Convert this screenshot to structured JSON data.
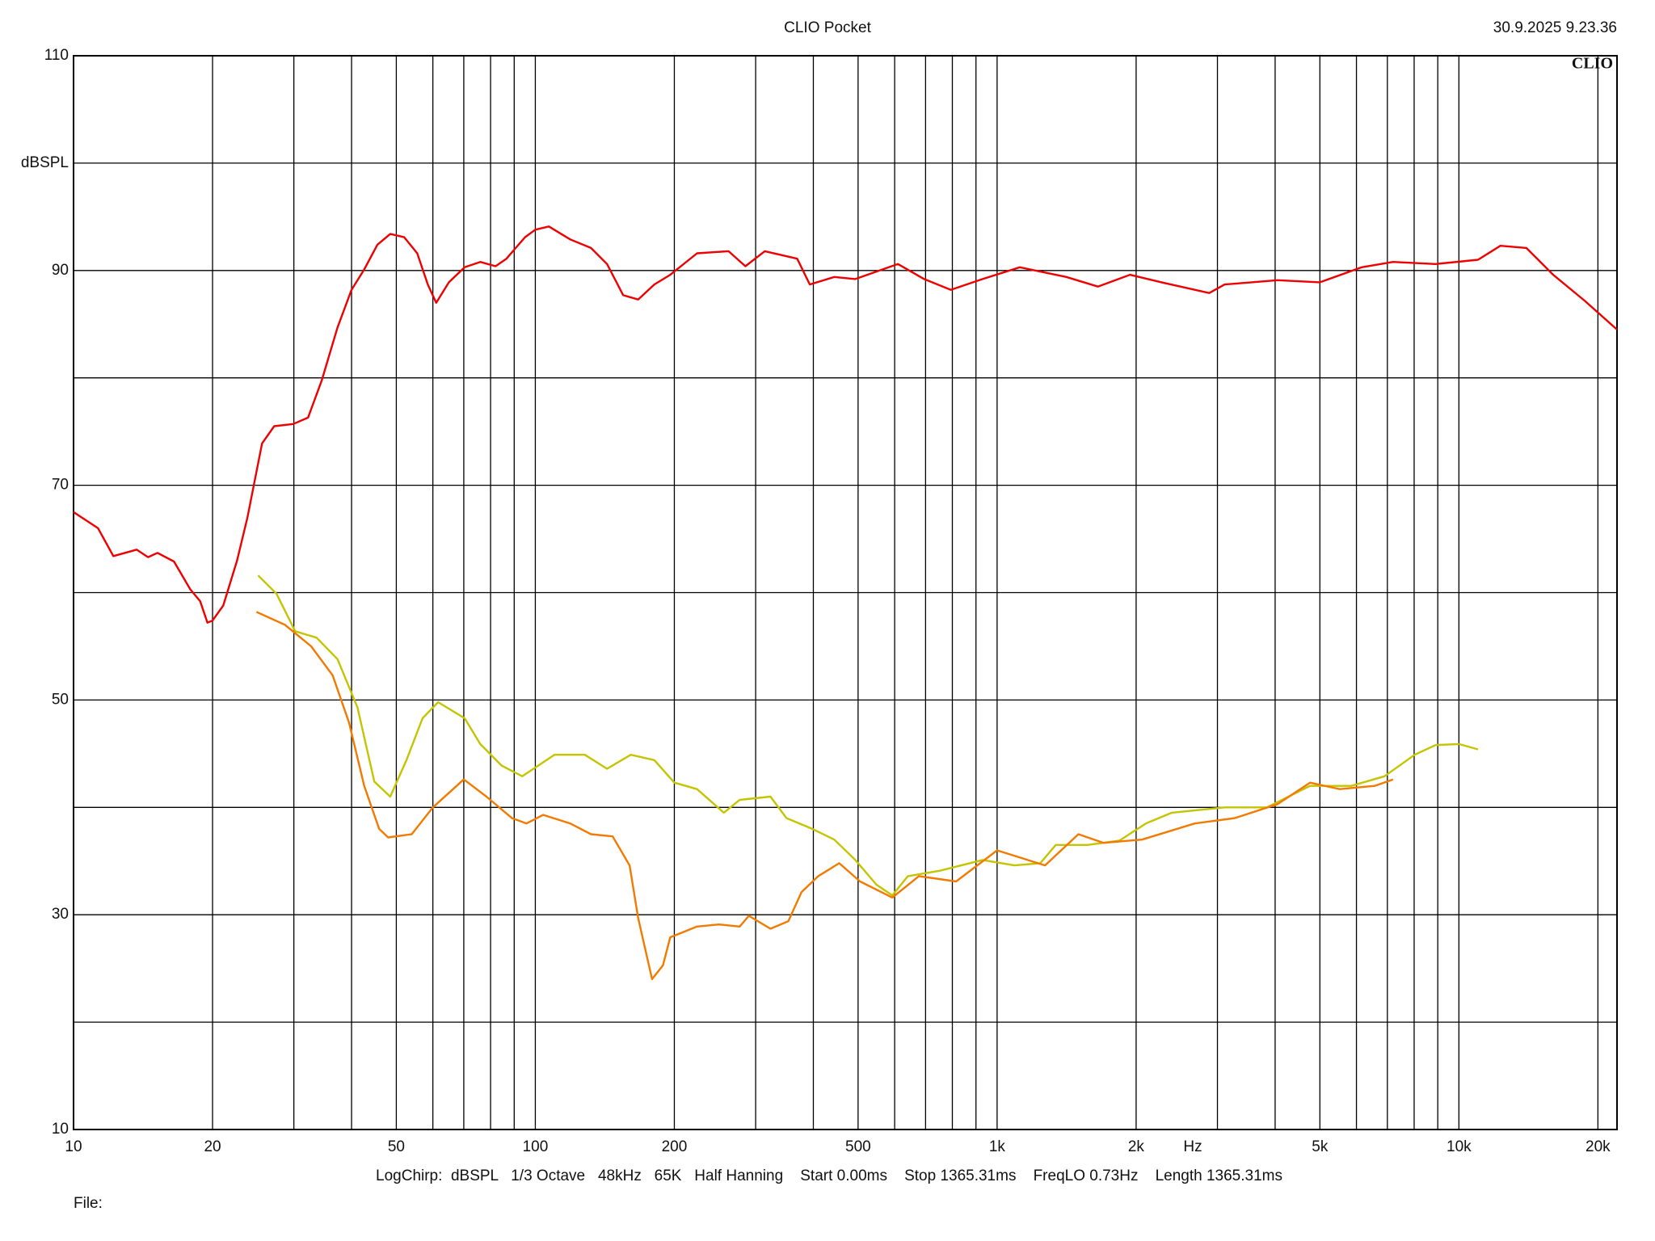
{
  "header": {
    "title": "CLIO Pocket",
    "timestamp": "30.9.2025 9.23.36",
    "logo": "CLIO"
  },
  "footer": {
    "settings": "LogChirp:  dBSPL   1/3 Octave   48kHz   65K   Half Hanning    Start 0.00ms    Stop 1365.31ms    FreqLO 0.73Hz    Length 1365.31ms",
    "file": "File:"
  },
  "chart_data": {
    "type": "line",
    "x_scale": "log",
    "grid": true,
    "xlabel": "Hz",
    "ylabel": "dBSPL",
    "xlim": [
      10,
      22000
    ],
    "ylim": [
      10,
      110
    ],
    "xticks": [
      10,
      20,
      50,
      100,
      200,
      500,
      {
        "value": 1000,
        "label": "1k"
      },
      {
        "value": 2000,
        "label": "2k"
      },
      {
        "value": 5000,
        "label": "5k"
      },
      {
        "value": 10000,
        "label": "10k"
      },
      {
        "value": 20000,
        "label": "20k"
      }
    ],
    "xgrid": [
      30,
      40,
      60,
      70,
      80,
      90,
      300,
      400,
      600,
      700,
      800,
      900,
      3000,
      4000,
      6000,
      7000,
      8000,
      9000
    ],
    "yticks": [
      10,
      30,
      50,
      70,
      90,
      110
    ],
    "ygrid": [
      20,
      40,
      60,
      80,
      100
    ],
    "series": [
      {
        "color": "#ee0000",
        "x": [
          10,
          11.3,
          12.2,
          13.7,
          14.5,
          15.2,
          16.5,
          17.9,
          18.8,
          19.5,
          20,
          21.1,
          22.6,
          23.8,
          25.6,
          27.2,
          29.9,
          32.2,
          34.5,
          37.3,
          40,
          42.6,
          45.5,
          48.5,
          52,
          55.5,
          58.5,
          61,
          65,
          70.3,
          76,
          82,
          86.6,
          95,
          100,
          107,
          119,
          132,
          143,
          155,
          167,
          181,
          196,
          224,
          262,
          285,
          314,
          369,
          393,
          444,
          493,
          610,
          695,
          794,
          930,
          1120,
          1412,
          1653,
          1940,
          2270,
          2880,
          3110,
          4050,
          5000,
          6160,
          7200,
          8900,
          11000,
          12300,
          14000,
          16000,
          18700,
          22000
        ],
        "values": [
          67.5,
          66,
          63.4,
          64,
          63.3,
          63.7,
          62.9,
          60.3,
          59.2,
          57.2,
          57.4,
          58.8,
          63,
          67,
          73.9,
          75.5,
          75.7,
          76.3,
          79.8,
          84.7,
          88.2,
          90.1,
          92.4,
          93.4,
          93.1,
          91.6,
          88.7,
          87,
          88.9,
          90.3,
          90.8,
          90.4,
          91.1,
          93.1,
          93.8,
          94.1,
          92.9,
          92.1,
          90.6,
          87.7,
          87.3,
          88.7,
          89.6,
          91.6,
          91.8,
          90.4,
          91.8,
          91.1,
          88.7,
          89.4,
          89.2,
          90.6,
          89.2,
          88.2,
          89.2,
          90.3,
          89.4,
          88.5,
          89.6,
          88.9,
          87.9,
          88.7,
          89.1,
          88.9,
          90.3,
          90.8,
          90.6,
          91,
          92.3,
          92.1,
          89.6,
          87.2,
          84.5
        ]
      },
      {
        "color": "#c4c400",
        "x": [
          25.1,
          27.5,
          30.2,
          33.6,
          37.3,
          41.2,
          44.8,
          48.5,
          52.6,
          57,
          61.6,
          70.3,
          76,
          84.5,
          93.7,
          110,
          128,
          143,
          161,
          181,
          200,
          224,
          256,
          277,
          323,
          350,
          398,
          444,
          493,
          548,
          593,
          641,
          752,
          930,
          1090,
          1240,
          1340,
          1570,
          1840,
          2100,
          2390,
          3110,
          3840,
          4760,
          5850,
          6900,
          8020,
          8900,
          10000,
          11000
        ],
        "values": [
          61.6,
          59.9,
          56.4,
          55.8,
          53.8,
          49.3,
          42.4,
          41,
          44.4,
          48.3,
          49.8,
          48.3,
          45.9,
          43.9,
          42.9,
          44.9,
          44.9,
          43.6,
          44.9,
          44.4,
          42.3,
          41.7,
          39.5,
          40.7,
          41,
          39,
          38,
          37,
          35.1,
          32.8,
          31.8,
          33.6,
          34.1,
          35.1,
          34.6,
          34.8,
          36.5,
          36.5,
          36.9,
          38.5,
          39.5,
          40,
          40,
          42,
          42,
          42.9,
          44.9,
          45.8,
          45.9,
          45.4
        ]
      },
      {
        "color": "#f27a00",
        "x": [
          24.9,
          28.7,
          32.7,
          36.4,
          39.5,
          42.6,
          45.9,
          48,
          54,
          60,
          70,
          78.4,
          89,
          95.7,
          104,
          119,
          132,
          147,
          160,
          167,
          179,
          189,
          196,
          224,
          250,
          277,
          290,
          323,
          353,
          377,
          410,
          455,
          505,
          593,
          677,
          815,
          1000,
          1270,
          1500,
          1700,
          2060,
          2680,
          3270,
          4050,
          4760,
          5520,
          6570,
          7200
        ],
        "values": [
          58.2,
          57,
          55,
          52.3,
          47.9,
          42,
          38,
          37.2,
          37.5,
          40,
          42.6,
          41,
          39,
          38.5,
          39.3,
          38.5,
          37.5,
          37.3,
          34.6,
          29.7,
          24,
          25.3,
          27.9,
          28.9,
          29.1,
          28.9,
          29.9,
          28.7,
          29.4,
          32.1,
          33.6,
          34.8,
          33.1,
          31.6,
          33.6,
          33.1,
          36,
          34.6,
          37.5,
          36.7,
          37,
          38.5,
          39,
          40.3,
          42.3,
          41.7,
          42,
          42.6
        ]
      }
    ]
  }
}
